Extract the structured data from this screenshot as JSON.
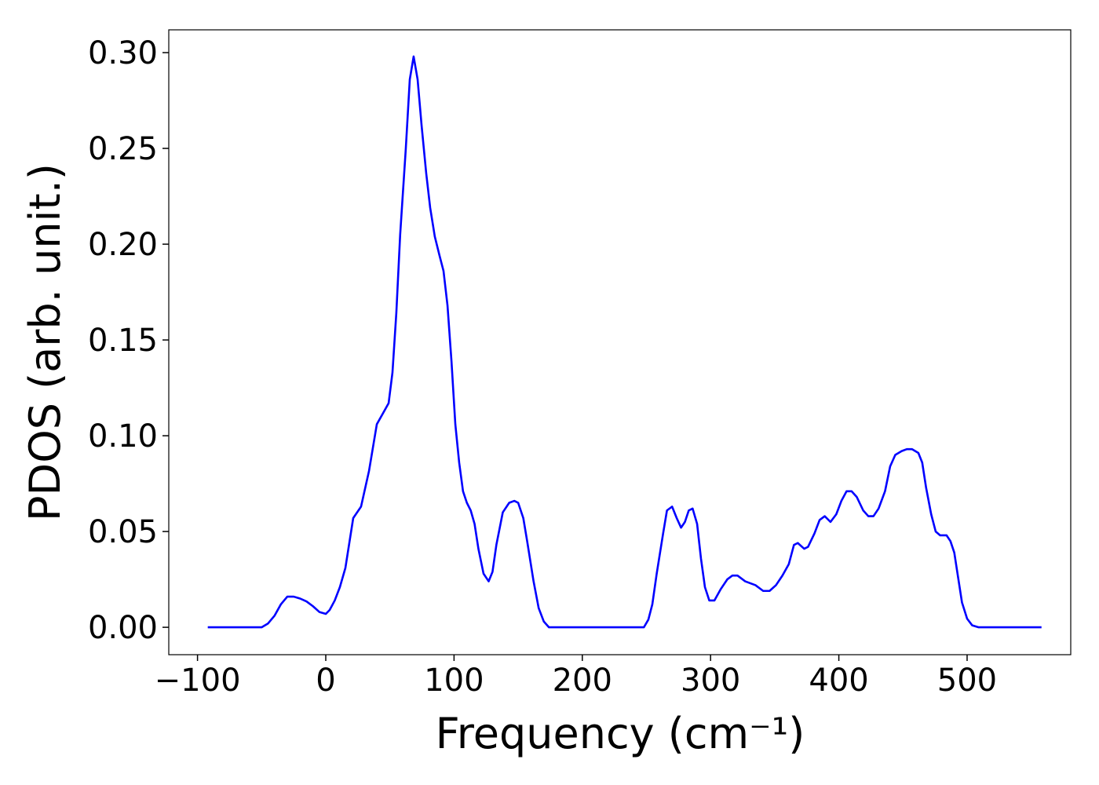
{
  "chart_data": {
    "type": "line",
    "xlabel": "Frequency (cm⁻¹)",
    "ylabel": "PDOS (arb. unit.)",
    "xlim": [
      -122.4,
      580.8
    ],
    "ylim": [
      -0.0143,
      0.3119
    ],
    "xticks": [
      {
        "value": -100,
        "label": "−100"
      },
      0,
      100,
      200,
      300,
      400,
      500
    ],
    "yticks": [
      {
        "value": 0,
        "label": "0.00"
      },
      {
        "value": 0.05,
        "label": "0.05"
      },
      {
        "value": 0.1,
        "label": "0.10"
      },
      {
        "value": 0.15,
        "label": "0.15"
      },
      {
        "value": 0.2,
        "label": "0.20"
      },
      {
        "value": 0.25,
        "label": "0.25"
      },
      {
        "value": 0.3,
        "label": "0.30"
      }
    ],
    "grid": false,
    "series": [
      {
        "color": "#0000ff",
        "x": [
          -92,
          -50,
          -45,
          -40,
          -35,
          -30,
          -25,
          -20,
          -15,
          -10,
          -5,
          0,
          3,
          7,
          11,
          15.3,
          21.4,
          27.5,
          33.7,
          39.8,
          44,
          49,
          52,
          55,
          58,
          62.4,
          65.5,
          68.5,
          71.6,
          74.7,
          78.3,
          81.4,
          85,
          88.7,
          91.8,
          94.9,
          98,
          101,
          104,
          107,
          110,
          113,
          116,
          119,
          123,
          127,
          130,
          133,
          138,
          143,
          147,
          150,
          154,
          157,
          162,
          166,
          170,
          174,
          248,
          251.5,
          254.6,
          258,
          263,
          266,
          270,
          273.6,
          277,
          280,
          283,
          286,
          289.5,
          292.5,
          295.6,
          299,
          303,
          308,
          313,
          317,
          321,
          327,
          335,
          341,
          346,
          351,
          356,
          361,
          365,
          368,
          373,
          376,
          381,
          385,
          389,
          393.5,
          398,
          402,
          406,
          410,
          414,
          419,
          423,
          427,
          431,
          436,
          440,
          444,
          449,
          453,
          457,
          462,
          465,
          468,
          472,
          475.5,
          479,
          484,
          487,
          490,
          493,
          496,
          500,
          504,
          509,
          558
        ],
        "values": [
          0,
          0,
          0.002,
          0.006,
          0.012,
          0.016,
          0.016,
          0.015,
          0.0135,
          0.011,
          0.008,
          0.007,
          0.009,
          0.014,
          0.021,
          0.031,
          0.057,
          0.063,
          0.0816,
          0.106,
          0.111,
          0.117,
          0.133,
          0.164,
          0.205,
          0.25,
          0.286,
          0.298,
          0.286,
          0.262,
          0.237,
          0.219,
          0.204,
          0.194,
          0.186,
          0.168,
          0.139,
          0.106,
          0.086,
          0.071,
          0.065,
          0.061,
          0.054,
          0.041,
          0.028,
          0.024,
          0.029,
          0.043,
          0.06,
          0.065,
          0.066,
          0.065,
          0.057,
          0.045,
          0.024,
          0.01,
          0.003,
          0,
          0,
          0.004,
          0.012,
          0.028,
          0.049,
          0.061,
          0.063,
          0.057,
          0.052,
          0.055,
          0.061,
          0.062,
          0.054,
          0.036,
          0.021,
          0.014,
          0.014,
          0.02,
          0.025,
          0.027,
          0.027,
          0.024,
          0.022,
          0.019,
          0.019,
          0.022,
          0.027,
          0.033,
          0.043,
          0.044,
          0.041,
          0.042,
          0.049,
          0.056,
          0.058,
          0.055,
          0.059,
          0.066,
          0.071,
          0.071,
          0.068,
          0.061,
          0.058,
          0.058,
          0.062,
          0.071,
          0.084,
          0.09,
          0.092,
          0.093,
          0.093,
          0.091,
          0.086,
          0.073,
          0.059,
          0.05,
          0.048,
          0.048,
          0.045,
          0.039,
          0.026,
          0.013,
          0.0045,
          0.001,
          0,
          0
        ]
      }
    ]
  }
}
